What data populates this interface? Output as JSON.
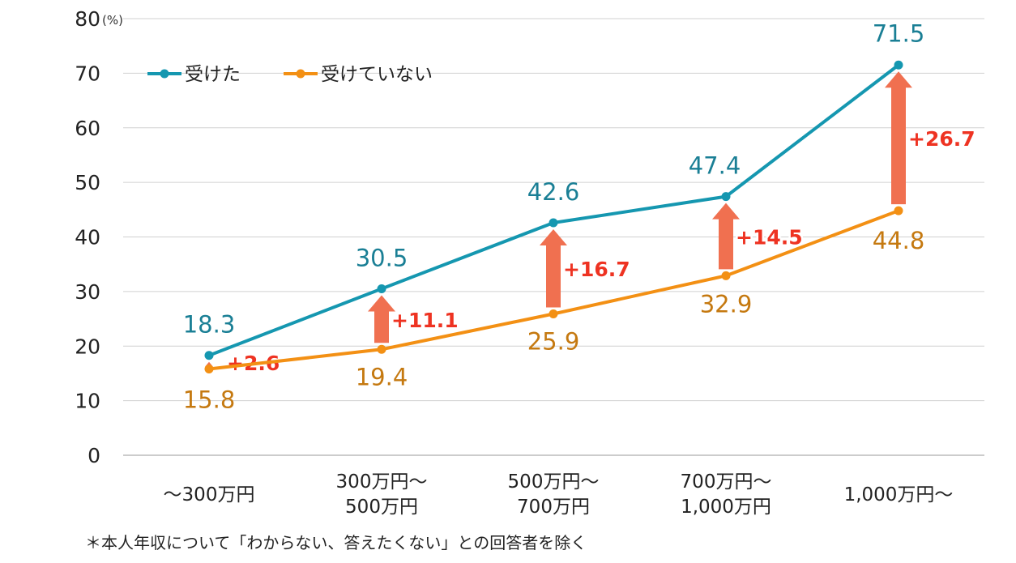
{
  "chart_data": {
    "type": "line",
    "y_unit": "(%)",
    "ylim": [
      0,
      80
    ],
    "yticks": [
      "0",
      "10",
      "20",
      "30",
      "40",
      "50",
      "60",
      "70",
      "80"
    ],
    "categories": [
      [
        "～300万円"
      ],
      [
        "300万円～",
        "500万円"
      ],
      [
        "500万円～",
        "700万円"
      ],
      [
        "700万円～",
        "1,000万円"
      ],
      [
        "1,000万円～"
      ]
    ],
    "series": [
      {
        "name": "受けた",
        "color": "#1597b0",
        "values": [
          18.3,
          30.5,
          42.6,
          47.4,
          71.5
        ],
        "labels": [
          "18.3",
          "30.5",
          "42.6",
          "47.4",
          "71.5"
        ]
      },
      {
        "name": "受けていない",
        "color": "#f39014",
        "values": [
          15.8,
          19.4,
          25.9,
          32.9,
          44.8
        ],
        "labels": [
          "15.8",
          "19.4",
          "25.9",
          "32.9",
          "44.8"
        ]
      }
    ],
    "differences": [
      "+2.6",
      "+11.1",
      "+16.7",
      "+14.5",
      "+26.7"
    ],
    "difference_color": "#f07050",
    "difference_text_color": "#ee3322",
    "legend_position": "top-left",
    "grid": true
  },
  "footnote": "＊本人年収について「わからない、答えたくない」との回答者を除く"
}
